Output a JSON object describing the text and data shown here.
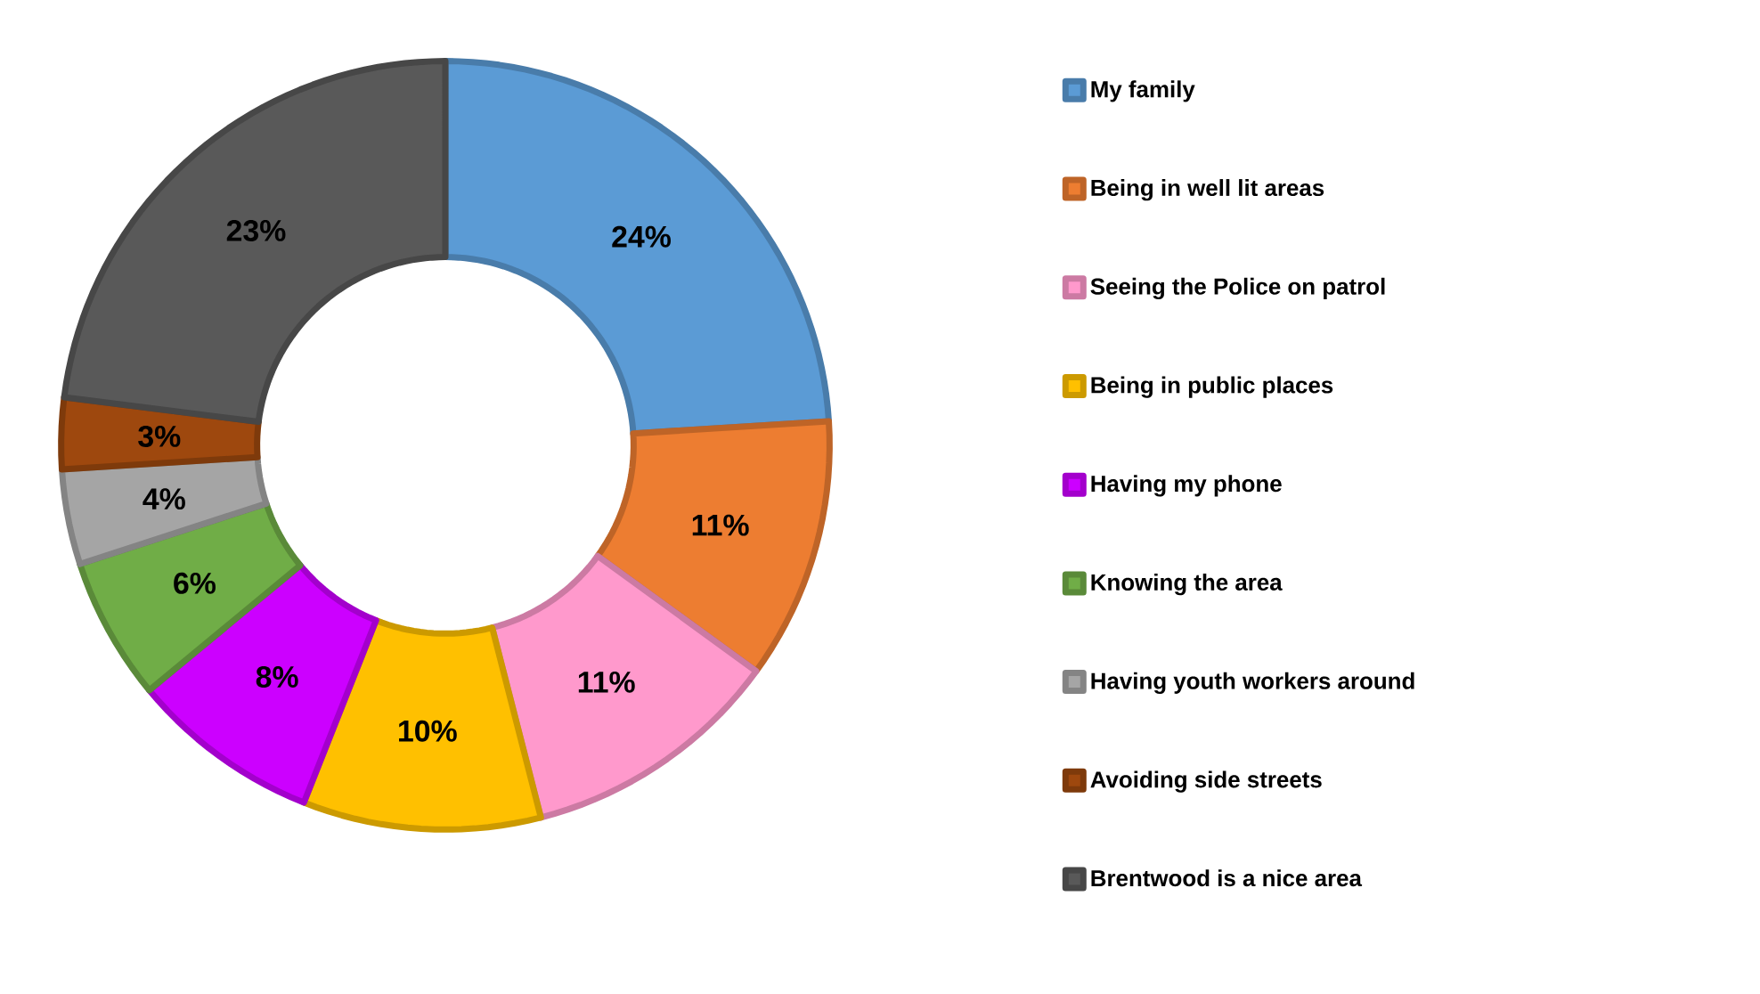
{
  "chart_data": {
    "type": "donut",
    "categories": [
      "My family",
      "Being in well lit areas",
      "Seeing the Police on patrol",
      "Being in public places",
      "Having my phone",
      "Knowing the area",
      "Having youth workers around",
      "Avoiding side streets",
      "Brentwood is a nice area"
    ],
    "values": [
      24,
      11,
      11,
      10,
      8,
      6,
      4,
      3,
      23
    ],
    "value_labels": [
      "24%",
      "11%",
      "11%",
      "10%",
      "8%",
      "6%",
      "4%",
      "3%",
      "23%"
    ],
    "colors": [
      "#5b9bd5",
      "#ed7d31",
      "#ff99cc",
      "#ffc000",
      "#cc00ff",
      "#70ad47",
      "#a5a5a5",
      "#9e480e",
      "#595959"
    ],
    "legend": "right"
  }
}
